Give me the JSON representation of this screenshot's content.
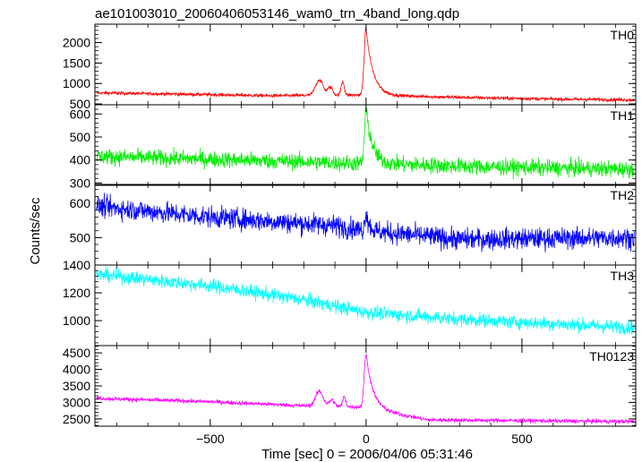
{
  "chart_data": {
    "type": "line",
    "title": "ae101003010_20060406053146_wam0_trn_4band_long.qdp",
    "xlabel": "Time [sec] 0 = 2006/04/06 05:31:46",
    "ylabel": "Counts/sec",
    "xlim": [
      -870,
      865
    ],
    "x_ticks": [
      -500,
      0,
      500
    ],
    "x_tick_labels": [
      "−500",
      "0",
      "500"
    ],
    "grid": false,
    "panels": [
      {
        "name": "TH0",
        "color": "#ff0000",
        "ylim": [
          480,
          2450
        ],
        "y_ticks": [
          500,
          1000,
          1500,
          2000
        ],
        "y_tick_labels": [
          "500",
          "1000",
          "1500",
          "2000"
        ],
        "baseline": [
          [
            -850,
            770
          ],
          [
            -600,
            740
          ],
          [
            -300,
            700
          ],
          [
            -20,
            720
          ],
          [
            300,
            660
          ],
          [
            600,
            620
          ],
          [
            850,
            600
          ]
        ],
        "noise": 30,
        "features": [
          {
            "x": -150,
            "height": 380,
            "width": 12
          },
          {
            "x": -115,
            "height": 190,
            "width": 8
          },
          {
            "x": -75,
            "height": 330,
            "width": 5
          },
          {
            "x": 0,
            "height": 1620,
            "width": 6,
            "decay": 22
          }
        ]
      },
      {
        "name": "TH1",
        "color": "#00ee00",
        "ylim": [
          290,
          640
        ],
        "y_ticks": [
          300,
          400,
          500,
          600
        ],
        "y_tick_labels": [
          "300",
          "400",
          "500",
          "600"
        ],
        "baseline": [
          [
            -850,
            415
          ],
          [
            -400,
            400
          ],
          [
            -20,
            385
          ],
          [
            400,
            370
          ],
          [
            850,
            360
          ]
        ],
        "noise": 25,
        "features": [
          {
            "x": 0,
            "height": 235,
            "width": 5,
            "decay": 20
          }
        ]
      },
      {
        "name": "TH2",
        "color": "#0000ff",
        "ylim": [
          420,
          655
        ],
        "y_ticks": [
          500,
          600
        ],
        "y_tick_labels": [
          "500",
          "600"
        ],
        "baseline": [
          [
            -850,
            590
          ],
          [
            -500,
            560
          ],
          [
            -100,
            535
          ],
          [
            0,
            520
          ],
          [
            300,
            495
          ],
          [
            850,
            500
          ]
        ],
        "noise": 22,
        "features": [
          {
            "x": 0,
            "height": 55,
            "width": 4,
            "decay": 10
          }
        ]
      },
      {
        "name": "TH3",
        "color": "#00ffff",
        "ylim": [
          820,
          1400
        ],
        "y_ticks": [
          1000,
          1200,
          1400
        ],
        "y_tick_labels": [
          "1000",
          "1200",
          "1400"
        ],
        "baseline": [
          [
            -850,
            1330
          ],
          [
            -500,
            1250
          ],
          [
            -200,
            1150
          ],
          [
            0,
            1060
          ],
          [
            300,
            1010
          ],
          [
            850,
            950
          ]
        ],
        "noise": 35,
        "features": []
      },
      {
        "name": "TH0123",
        "color": "#ff00ff",
        "ylim": [
          2280,
          4720
        ],
        "y_ticks": [
          2500,
          3000,
          3500,
          4000,
          4500
        ],
        "y_tick_labels": [
          "2500",
          "3000",
          "3500",
          "4000",
          "4500"
        ],
        "baseline": [
          [
            -850,
            3120
          ],
          [
            -500,
            3020
          ],
          [
            -200,
            2900
          ],
          [
            -20,
            2860
          ],
          [
            200,
            2470
          ],
          [
            850,
            2420
          ]
        ],
        "noise": 45,
        "features": [
          {
            "x": -150,
            "height": 450,
            "width": 12
          },
          {
            "x": -110,
            "height": 200,
            "width": 8
          },
          {
            "x": -70,
            "height": 300,
            "width": 5
          },
          {
            "x": 0,
            "height": 1650,
            "width": 6,
            "decay": 22
          }
        ]
      }
    ]
  }
}
